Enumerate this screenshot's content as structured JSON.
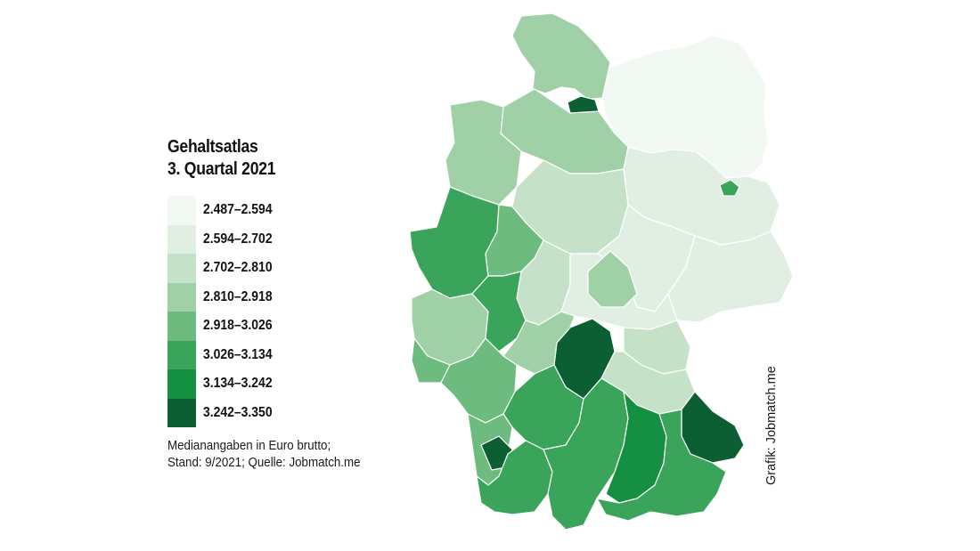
{
  "title": {
    "line1": "Gehaltsatlas",
    "line2": "3. Quartal 2021"
  },
  "legend": {
    "items": [
      {
        "label": "2.487–2.594",
        "color": "#f2f8f2"
      },
      {
        "label": "2.594–2.702",
        "color": "#e0efe1"
      },
      {
        "label": "2.702–2.810",
        "color": "#c5e2c8"
      },
      {
        "label": "2.810–2.918",
        "color": "#9fd0a6"
      },
      {
        "label": "2.918–3.026",
        "color": "#6dbb7e"
      },
      {
        "label": "3.026–3.134",
        "color": "#3aa55a"
      },
      {
        "label": "3.134–3.242",
        "color": "#159043"
      },
      {
        "label": "3.242–3.350",
        "color": "#0b5f32"
      }
    ]
  },
  "note": {
    "line1": "Medianangaben in Euro brutto;",
    "line2": "Stand: 9/2021; Quelle: Jobmatch.me"
  },
  "credit": "Grafik: Jobmatch.me",
  "map": {
    "country": "germany",
    "region_classes": {
      "schleswig_holstein": 3,
      "hamburg": 7,
      "mecklenburg_vorpommern": 0,
      "berlin": 5,
      "brandenburg_north": 1,
      "brandenburg_south": 1,
      "lower_saxony_north": 3,
      "lower_saxony_west": 3,
      "hannover": 5,
      "lower_saxony_east": 2,
      "saxony_anhalt": 1,
      "saxony": 1,
      "ruhr_west": 5,
      "westphalia": 4,
      "north_hesse": 2,
      "thuringia": 1,
      "jena_erfurt": 3,
      "rhineland_palatinate": 3,
      "frankfurt": 5,
      "upper_franconia": 2,
      "nuremberg_region": 7,
      "saarland": 4,
      "baden_north": 4,
      "wuerzburg": 3,
      "upper_palatinate": 2,
      "stuttgart": 5,
      "baden_south": 4,
      "freiburg": 7,
      "lake_constance": 5,
      "swabia": 5,
      "munich": 6,
      "lower_bavaria_passau": 7,
      "upper_bavaria_south": 5
    }
  }
}
